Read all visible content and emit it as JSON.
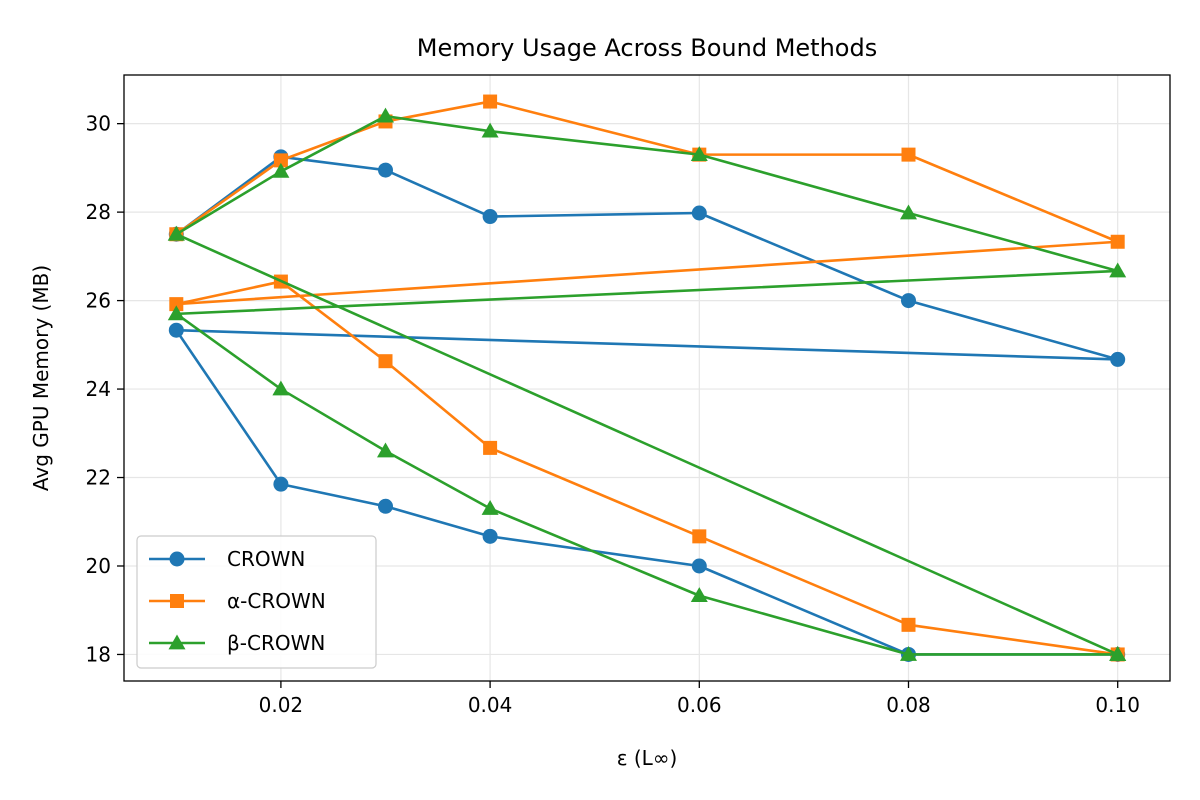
{
  "chart_data": {
    "type": "line",
    "title": "Memory Usage Across Bound Methods",
    "xlabel": "ε (L∞)",
    "ylabel": "Avg GPU Memory (MB)",
    "xlim": [
      0.005,
      0.105
    ],
    "ylim": [
      17.4,
      31.1
    ],
    "xticks": [
      0.02,
      0.04,
      0.06,
      0.08,
      0.1
    ],
    "xtick_labels": [
      "0.02",
      "0.04",
      "0.06",
      "0.08",
      "0.10"
    ],
    "yticks": [
      18,
      20,
      22,
      24,
      26,
      28,
      30
    ],
    "ytick_labels": [
      "18",
      "20",
      "22",
      "24",
      "26",
      "28",
      "30"
    ],
    "grid": true,
    "legend_position": "lower-left",
    "series": [
      {
        "name": "CROWN",
        "color": "#1f77b4",
        "marker": "circle",
        "points": [
          [
            0.01,
            27.5
          ],
          [
            0.02,
            29.25
          ],
          [
            0.03,
            28.95
          ],
          [
            0.04,
            27.9
          ],
          [
            0.06,
            27.98
          ],
          [
            0.08,
            26.0
          ],
          [
            0.1,
            24.67
          ],
          [
            0.01,
            25.33
          ],
          [
            0.02,
            21.85
          ],
          [
            0.03,
            21.35
          ],
          [
            0.04,
            20.67
          ],
          [
            0.06,
            20.0
          ],
          [
            0.08,
            18.0
          ],
          [
            0.1,
            18.0
          ]
        ]
      },
      {
        "name": "α-CROWN",
        "color": "#ff7f0e",
        "marker": "square",
        "points": [
          [
            0.01,
            27.5
          ],
          [
            0.02,
            29.17
          ],
          [
            0.03,
            30.05
          ],
          [
            0.04,
            30.5
          ],
          [
            0.06,
            29.3
          ],
          [
            0.08,
            29.3
          ],
          [
            0.1,
            27.33
          ],
          [
            0.01,
            25.92
          ],
          [
            0.02,
            26.43
          ],
          [
            0.03,
            24.63
          ],
          [
            0.04,
            22.67
          ],
          [
            0.06,
            20.67
          ],
          [
            0.08,
            18.67
          ],
          [
            0.1,
            18.0
          ]
        ]
      },
      {
        "name": "β-CROWN",
        "color": "#2ca02c",
        "marker": "triangle",
        "points": [
          [
            0.01,
            27.5
          ],
          [
            0.02,
            28.92
          ],
          [
            0.03,
            30.17
          ],
          [
            0.04,
            29.83
          ],
          [
            0.06,
            29.3
          ],
          [
            0.08,
            27.98
          ],
          [
            0.1,
            26.67
          ],
          [
            0.01,
            25.7
          ],
          [
            0.02,
            24.0
          ],
          [
            0.03,
            22.6
          ],
          [
            0.04,
            21.3
          ],
          [
            0.06,
            19.33
          ],
          [
            0.08,
            18.0
          ],
          [
            0.1,
            18.0
          ],
          [
            0.01,
            27.5
          ],
          [
            0.1,
            18.0
          ]
        ]
      }
    ]
  }
}
